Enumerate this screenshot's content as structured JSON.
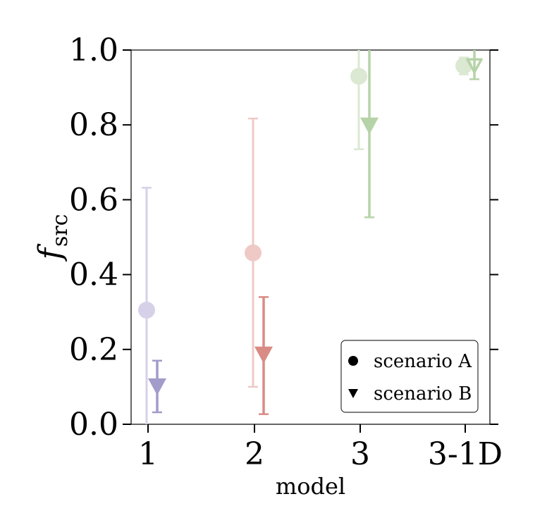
{
  "chart_data": {
    "type": "scatter",
    "title": "",
    "xlabel": "model",
    "ylabel": "f",
    "ylabel_subscript": "src",
    "categories": [
      "1",
      "2",
      "3",
      "3-1D"
    ],
    "ylim": [
      0.0,
      1.0
    ],
    "yticks": [
      0.0,
      0.2,
      0.4,
      0.6,
      0.8,
      1.0
    ],
    "ytick_labels": [
      "0.0",
      "0.2",
      "0.4",
      "0.6",
      "0.8",
      "1.0"
    ],
    "grid": false,
    "legend_position": "lower-right",
    "series": [
      {
        "name": "scenario A",
        "marker": "circle",
        "points": [
          {
            "category": "1",
            "value": 0.305,
            "err_low": 0.0,
            "err_high": 0.632,
            "color": "#d6d1e8"
          },
          {
            "category": "2",
            "value": 0.458,
            "err_low": 0.1,
            "err_high": 0.817,
            "color": "#efc9c6"
          },
          {
            "category": "3",
            "value": 0.93,
            "err_low": 0.735,
            "err_high": 1.0,
            "color": "#dbe8d2"
          },
          {
            "category": "3-1D",
            "value": 0.958,
            "err_low": 0.935,
            "err_high": 0.98,
            "color": "#dbe8d2"
          }
        ]
      },
      {
        "name": "scenario B",
        "marker": "triangle-down",
        "points": [
          {
            "category": "1",
            "value": 0.1,
            "err_low": 0.032,
            "err_high": 0.17,
            "color": "#a29ccb"
          },
          {
            "category": "2",
            "value": 0.185,
            "err_low": 0.027,
            "err_high": 0.34,
            "color": "#d98c85"
          },
          {
            "category": "3",
            "value": 0.797,
            "err_low": 0.553,
            "err_high": 1.0,
            "color": "#b6d3a7"
          },
          {
            "category": "3-1D",
            "value": 0.958,
            "err_low": 0.922,
            "err_high": 1.0,
            "color": "#b6d3a7",
            "hollow": true
          }
        ]
      }
    ]
  }
}
